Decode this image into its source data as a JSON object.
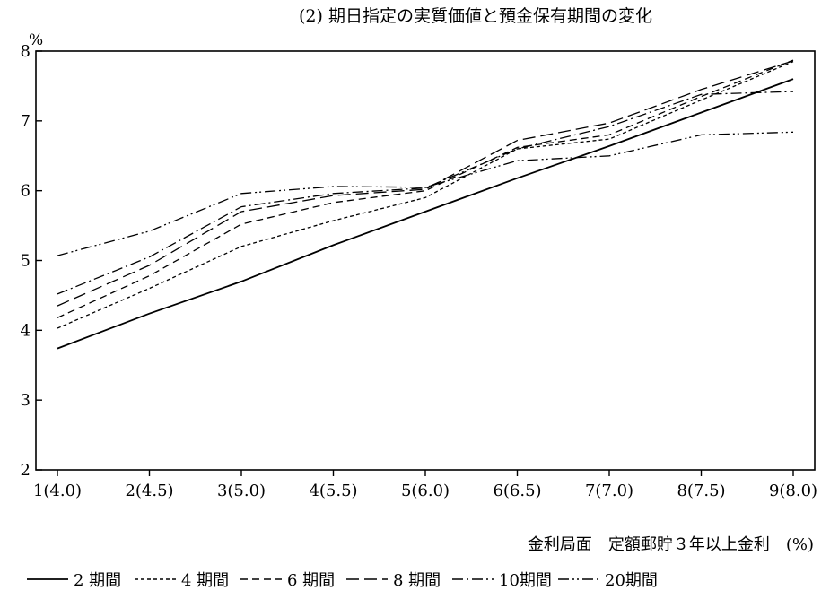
{
  "chart_data": {
    "type": "line",
    "title": "(2)  期日指定の実質価値と預金保有期間の変化",
    "ylabel": "%",
    "xlabel": "金利局面　定額郵貯３年以上金利　(%)",
    "categories": [
      "1(4.0)",
      "2(4.5)",
      "3(5.0)",
      "4(5.5)",
      "5(6.0)",
      "6(6.5)",
      "7(7.0)",
      "8(7.5)",
      "9(8.0)"
    ],
    "ylim": [
      2,
      8
    ],
    "yticks": [
      2,
      3,
      4,
      5,
      6,
      7,
      8
    ],
    "grid": false,
    "legend_position": "bottom",
    "series": [
      {
        "name": "2 期間",
        "dash": "solid",
        "values": [
          3.74,
          4.24,
          4.7,
          5.22,
          5.7,
          6.18,
          6.64,
          7.12,
          7.6
        ]
      },
      {
        "name": "4 期間",
        "dash": "dotted",
        "values": [
          4.03,
          4.6,
          5.2,
          5.57,
          5.9,
          6.6,
          6.74,
          7.3,
          7.85
        ]
      },
      {
        "name": "6 期間",
        "dash": "dashed",
        "values": [
          4.18,
          4.78,
          5.52,
          5.83,
          6.0,
          6.62,
          6.8,
          7.35,
          7.87
        ]
      },
      {
        "name": "8 期間",
        "dash": "longdash",
        "values": [
          4.35,
          4.93,
          5.7,
          5.93,
          6.02,
          6.72,
          6.97,
          7.45,
          7.86
        ]
      },
      {
        "name": "10期間",
        "dash": "dashdot",
        "values": [
          4.52,
          5.05,
          5.77,
          5.96,
          6.04,
          6.6,
          6.92,
          7.38,
          7.42
        ]
      },
      {
        "name": "20期間",
        "dash": "dashdotdot",
        "values": [
          5.07,
          5.42,
          5.96,
          6.06,
          6.05,
          6.43,
          6.5,
          6.8,
          6.84
        ]
      }
    ]
  }
}
